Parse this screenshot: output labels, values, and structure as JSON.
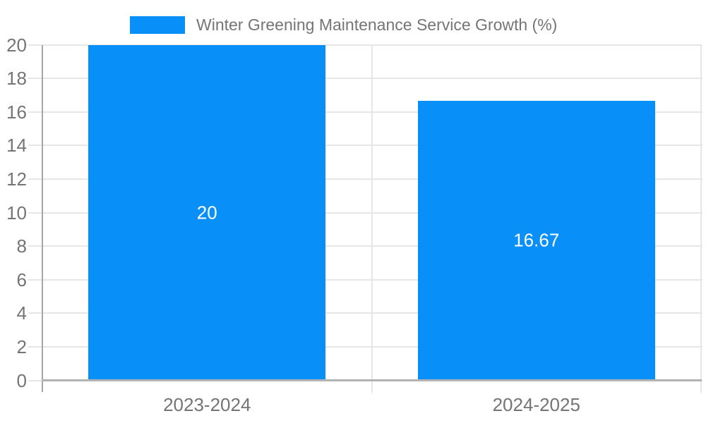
{
  "chart_data": {
    "type": "bar",
    "title": "Winter Greening Maintenance Service Growth (%)",
    "legend": {
      "position": "top",
      "items": [
        {
          "label": "Winter Greening Maintenance Service Growth (%)",
          "swatch_color": "#0890F8"
        }
      ]
    },
    "categories": [
      "2023-2024",
      "2024-2025"
    ],
    "values": [
      20,
      16.67
    ],
    "data_labels": [
      "20",
      "16.67"
    ],
    "xlabel": "",
    "ylabel": "",
    "ylim": [
      0,
      20
    ],
    "yticks": [
      0,
      2,
      4,
      6,
      8,
      10,
      12,
      14,
      16,
      18,
      20
    ],
    "ytick_labels": [
      "0",
      "2",
      "4",
      "6",
      "8",
      "10",
      "12",
      "14",
      "16",
      "18",
      "20"
    ],
    "grid": true,
    "colors": {
      "bar": "#0890F8",
      "bar_label_text": "#FFFFFF",
      "axis_text": "#757575",
      "legend_text": "#757575",
      "gridline": "#E6E6E6",
      "y_axis_line": "#A6A6A6",
      "x_axis_line": "#B3B3B3",
      "background": "#FFFFFF"
    }
  }
}
